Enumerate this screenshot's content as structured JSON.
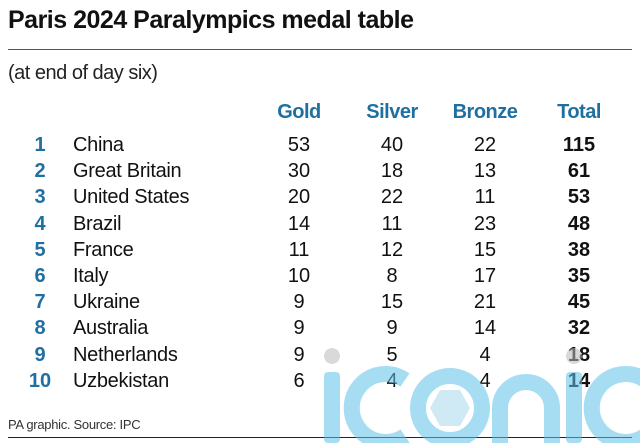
{
  "header": {
    "title": "Paris 2024 Paralympics medal table",
    "subtitle": "(at end of day six)"
  },
  "table": {
    "columns": [
      "Gold",
      "Silver",
      "Bronze",
      "Total"
    ],
    "rows": [
      {
        "rank": "1",
        "country": "China",
        "gold": "53",
        "silver": "40",
        "bronze": "22",
        "total": "115"
      },
      {
        "rank": "2",
        "country": "Great Britain",
        "gold": "30",
        "silver": "18",
        "bronze": "13",
        "total": "61"
      },
      {
        "rank": "3",
        "country": "United States",
        "gold": "20",
        "silver": "22",
        "bronze": "11",
        "total": "53"
      },
      {
        "rank": "4",
        "country": "Brazil",
        "gold": "14",
        "silver": "11",
        "bronze": "23",
        "total": "48"
      },
      {
        "rank": "5",
        "country": "France",
        "gold": "11",
        "silver": "12",
        "bronze": "15",
        "total": "38"
      },
      {
        "rank": "6",
        "country": "Italy",
        "gold": "10",
        "silver": "8",
        "bronze": "17",
        "total": "35"
      },
      {
        "rank": "7",
        "country": "Ukraine",
        "gold": "9",
        "silver": "15",
        "bronze": "21",
        "total": "45"
      },
      {
        "rank": "8",
        "country": "Australia",
        "gold": "9",
        "silver": "9",
        "bronze": "14",
        "total": "32"
      },
      {
        "rank": "9",
        "country": "Netherlands",
        "gold": "9",
        "silver": "5",
        "bronze": "4",
        "total": "18"
      },
      {
        "rank": "10",
        "country": "Uzbekistan",
        "gold": "6",
        "silver": "4",
        "bronze": "4",
        "total": "14"
      }
    ]
  },
  "footer": {
    "source": "PA graphic. Source: IPC"
  },
  "watermark": {
    "text": "iconic",
    "color": "#5ec3ea"
  },
  "colors": {
    "accent": "#1f6fa0",
    "text": "#111111"
  }
}
